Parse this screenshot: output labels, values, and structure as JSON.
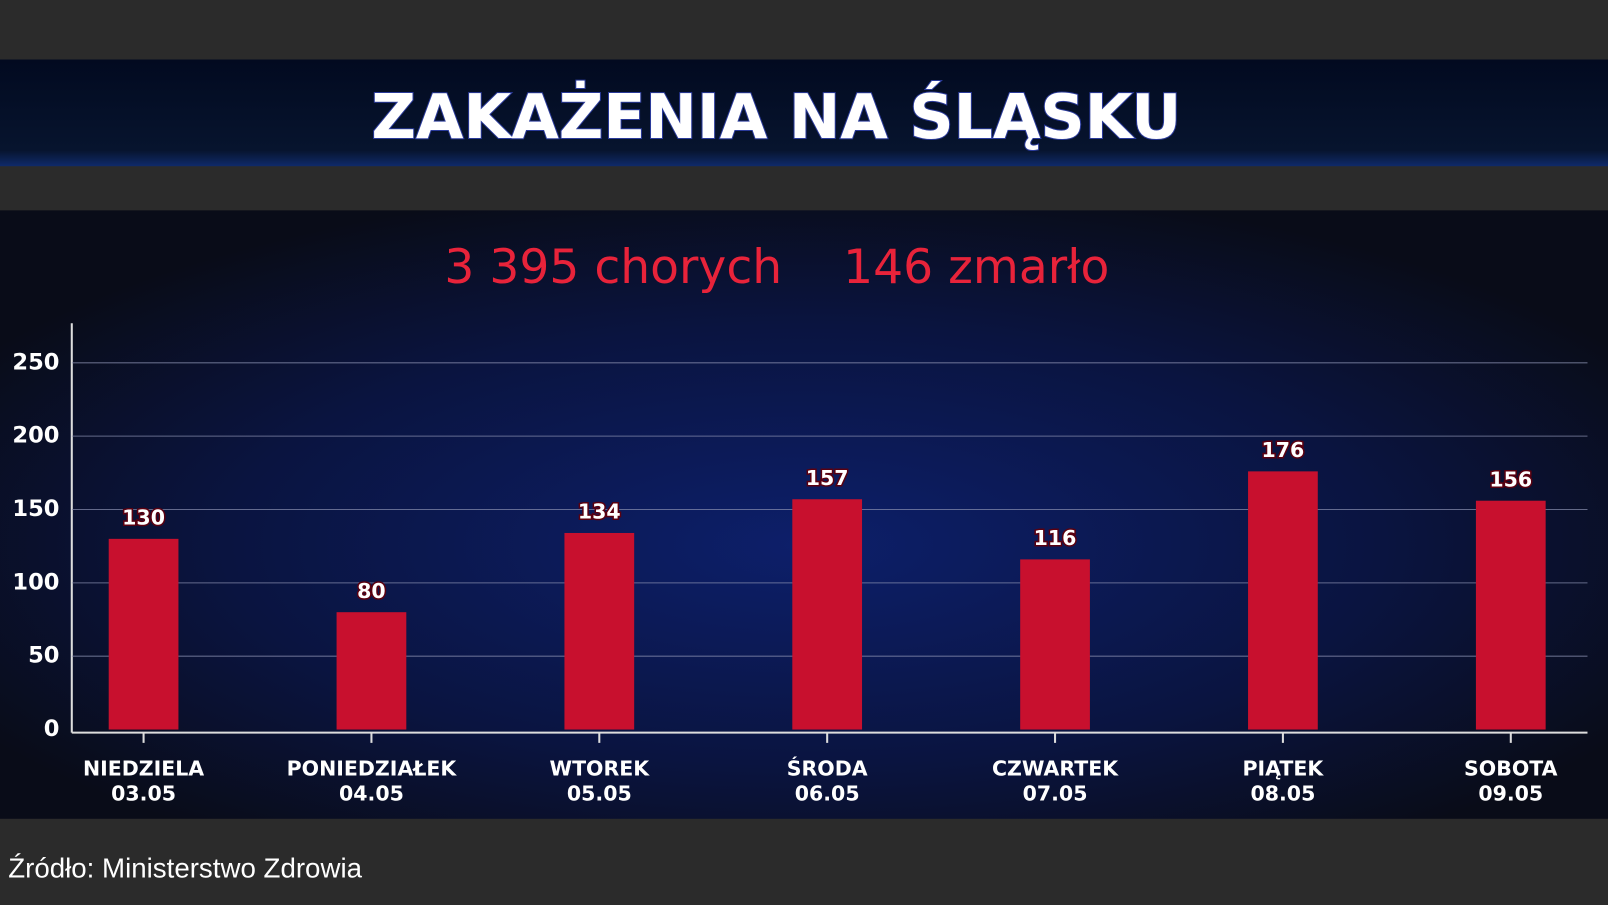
{
  "chart_data": {
    "type": "bar",
    "title": "ZAKAŻENIA NA ŚLĄSKU",
    "subtitle": [
      "3 395 chorych",
      "146 zmarło"
    ],
    "source": "Źródło: Ministerstwo Zdrowia",
    "categories": [
      [
        "NIEDZIELA",
        "03.05"
      ],
      [
        "PONIEDZIAŁEK",
        "04.05"
      ],
      [
        "WTOREK",
        "05.05"
      ],
      [
        "ŚRODA",
        "06.05"
      ],
      [
        "CZWARTEK",
        "07.05"
      ],
      [
        "PIĄTEK",
        "08.05"
      ],
      [
        "SOBOTA",
        "09.05"
      ]
    ],
    "values": [
      130,
      80,
      134,
      157,
      116,
      176,
      156
    ],
    "color": "#c8102e",
    "ylim": [
      0,
      277
    ],
    "yticks": [
      0,
      50,
      100,
      150,
      200,
      250
    ],
    "grid": true
  }
}
